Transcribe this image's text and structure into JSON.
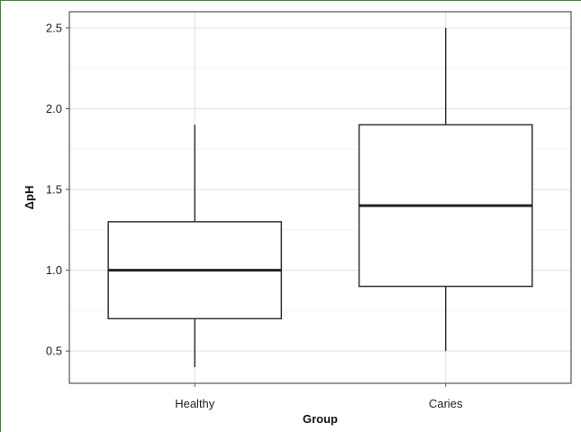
{
  "colors": {
    "frame_border": "#3a8a3a",
    "panel_border": "#555555",
    "grid_major": "#e4e4e4",
    "grid_minor": "#f2f2f2",
    "box_stroke": "#333333",
    "median_stroke": "#222222",
    "box_fill": "#ffffff"
  },
  "chart_data": {
    "type": "box",
    "title": "",
    "xlabel": "Group",
    "ylabel": "ΔpH",
    "ylim": [
      0.3,
      2.6
    ],
    "yticks": [
      0.5,
      1.0,
      1.5,
      2.0,
      2.5
    ],
    "ytick_labels": [
      "0.5",
      "1.0",
      "1.5",
      "2.0",
      "2.5"
    ],
    "categories": [
      "Healthy",
      "Caries"
    ],
    "grid": true,
    "boxes": [
      {
        "category": "Healthy",
        "min": 0.4,
        "q1": 0.7,
        "median": 1.0,
        "q3": 1.3,
        "max": 1.9
      },
      {
        "category": "Caries",
        "min": 0.5,
        "q1": 0.9,
        "median": 1.4,
        "q3": 1.9,
        "max": 2.5
      }
    ]
  }
}
